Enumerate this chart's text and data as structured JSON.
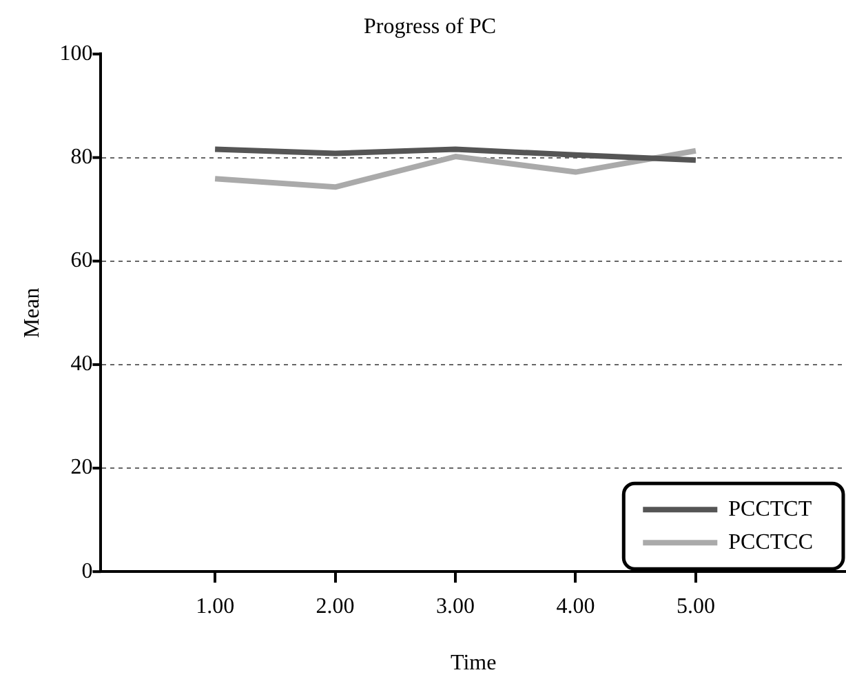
{
  "chart_data": {
    "type": "line",
    "title": "Progress of PC",
    "xlabel": "Time",
    "ylabel": "Mean",
    "x": [
      1,
      2,
      3,
      4,
      5
    ],
    "series": [
      {
        "name": "PCCTCT",
        "color": "#555555",
        "values": [
          81.6,
          80.8,
          81.6,
          80.5,
          79.5
        ]
      },
      {
        "name": "PCCTCC",
        "color": "#aaaaaa",
        "values": [
          75.9,
          74.3,
          80.2,
          77.2,
          81.3
        ]
      }
    ],
    "xlim": [
      0.05,
      6.25
    ],
    "xticks": [
      {
        "value": 1,
        "label": "1.00"
      },
      {
        "value": 2,
        "label": "2.00"
      },
      {
        "value": 3,
        "label": "3.00"
      },
      {
        "value": 4,
        "label": "4.00"
      },
      {
        "value": 5,
        "label": "5.00"
      }
    ],
    "ylim": [
      0,
      100
    ],
    "yticks": [
      0,
      20,
      40,
      60,
      80,
      100
    ],
    "grid": "y",
    "legend": "bottom right",
    "marker": "none",
    "line_style": "solid"
  }
}
